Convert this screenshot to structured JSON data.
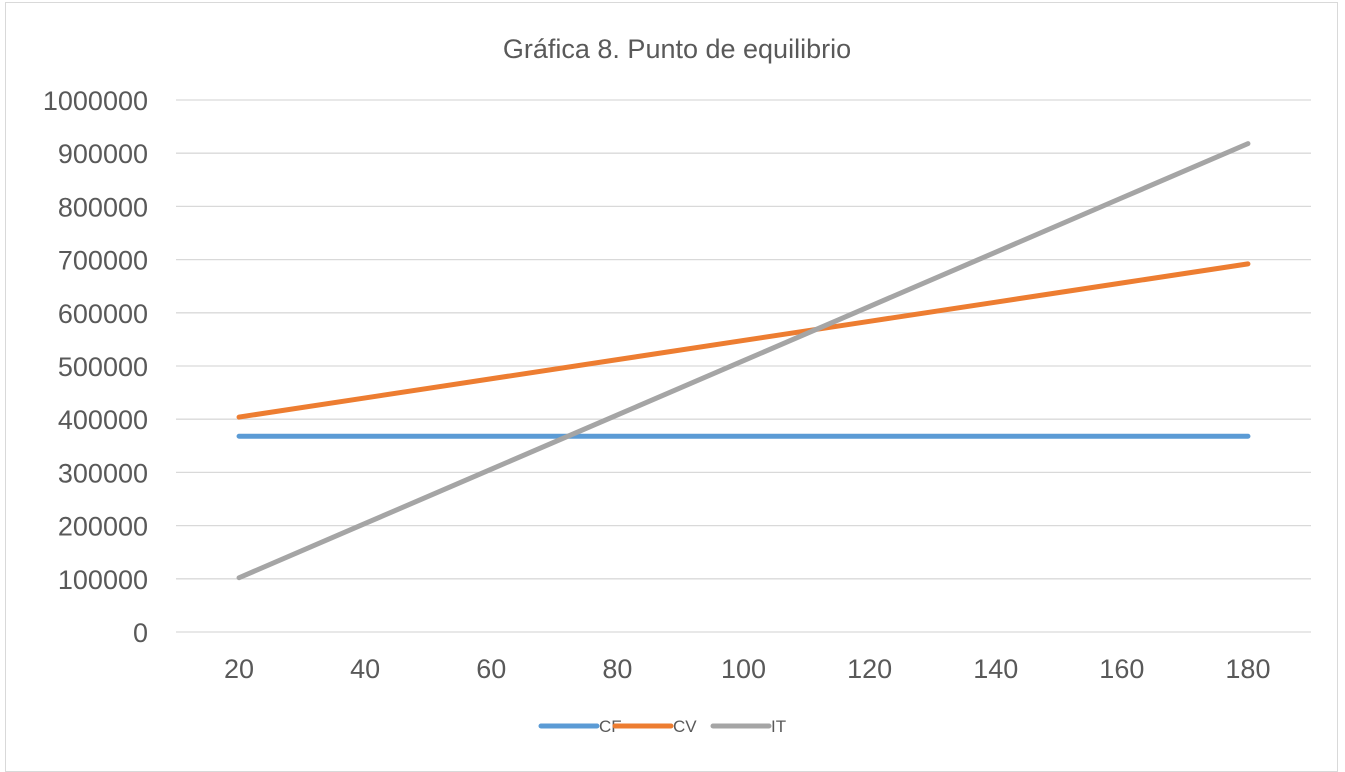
{
  "chart_data": {
    "type": "line",
    "title": "Gráfica 8. Punto de equilibrio",
    "xlabel": "",
    "ylabel": "",
    "x": [
      20,
      40,
      60,
      80,
      100,
      120,
      140,
      160,
      180
    ],
    "x_tick_labels": [
      "20",
      "40",
      "60",
      "80",
      "100",
      "120",
      "140",
      "160",
      "180"
    ],
    "ylim": [
      0,
      1000000
    ],
    "y_tick_labels": [
      "0",
      "100000",
      "200000",
      "300000",
      "400000",
      "500000",
      "600000",
      "700000",
      "800000",
      "900000",
      "1000000"
    ],
    "grid": true,
    "legend_position": "bottom",
    "series": [
      {
        "name": "CF",
        "color": "#5b9bd5",
        "values": [
          368000,
          368000,
          368000,
          368000,
          368000,
          368000,
          368000,
          368000,
          368000
        ]
      },
      {
        "name": "CV",
        "color": "#ed7d31",
        "values": [
          404000,
          440000,
          476000,
          512000,
          548000,
          584000,
          620000,
          656000,
          692000
        ]
      },
      {
        "name": "IT",
        "color": "#a5a5a5",
        "values": [
          102000,
          204000,
          306000,
          408000,
          510000,
          612000,
          714000,
          816000,
          918000
        ]
      }
    ]
  }
}
